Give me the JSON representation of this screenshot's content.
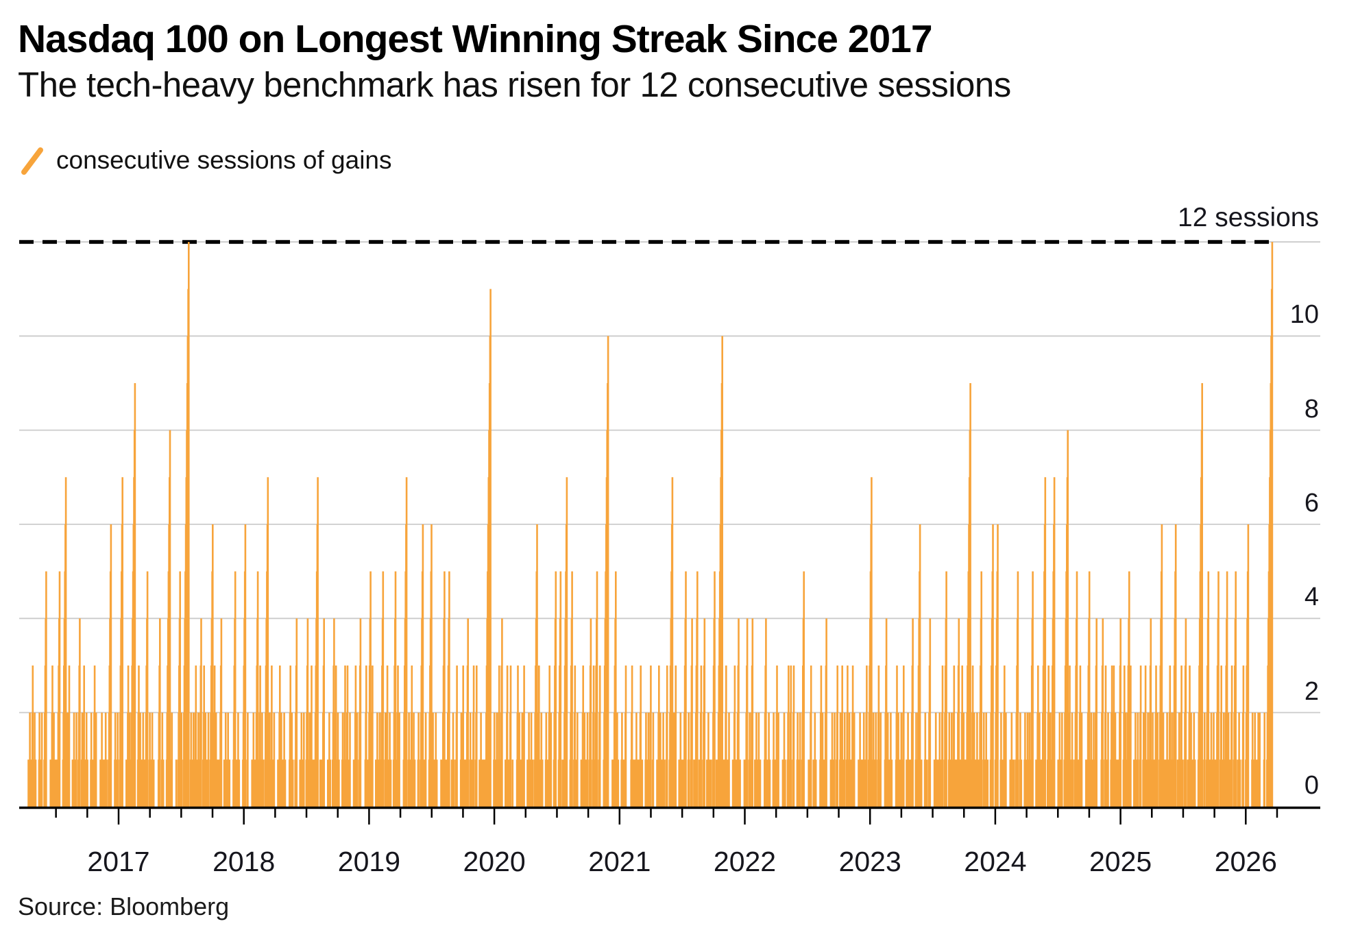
{
  "header": {
    "title": "Nasdaq 100 on Longest Winning Streak Since 2017",
    "subtitle": "The tech-heavy benchmark has risen for 12 consecutive sessions"
  },
  "legend": {
    "label": "consecutive sessions of gains"
  },
  "source": {
    "label": "Source: Bloomberg"
  },
  "chart_data": {
    "type": "bar",
    "title": "Nasdaq 100 on Longest Winning Streak Since 2017",
    "ylabel": "consecutive sessions of gains",
    "unit": "sessions",
    "annotation": {
      "text": "12 sessions",
      "value": 12
    },
    "y_ticks": [
      0,
      2,
      4,
      6,
      8,
      10
    ],
    "threshold_line": 12,
    "ylim": [
      0,
      12
    ],
    "x_tick_years": [
      2017,
      2018,
      2019,
      2020,
      2021,
      2022,
      2023,
      2024,
      2025,
      2026
    ],
    "timeline": {
      "start": 2016.28,
      "end": 2026.23,
      "trading_days_per_year": 261
    },
    "grid": true,
    "legend_position": "top-left",
    "series": [
      {
        "name": "consecutive sessions of gains",
        "note": "peaks = [decimal_year, streak_length_sessions]; each streak ramps 1..n on consecutive trading days",
        "peaks": [
          [
            2016.42,
            5
          ],
          [
            2016.53,
            5
          ],
          [
            2016.58,
            7
          ],
          [
            2016.69,
            4
          ],
          [
            2016.94,
            6
          ],
          [
            2017.03,
            7
          ],
          [
            2017.13,
            9
          ],
          [
            2017.23,
            5
          ],
          [
            2017.33,
            4
          ],
          [
            2017.41,
            8
          ],
          [
            2017.49,
            5
          ],
          [
            2017.56,
            12
          ],
          [
            2017.66,
            4
          ],
          [
            2017.75,
            6
          ],
          [
            2017.82,
            4
          ],
          [
            2017.93,
            5
          ],
          [
            2018.01,
            6
          ],
          [
            2018.11,
            5
          ],
          [
            2018.19,
            7
          ],
          [
            2018.42,
            4
          ],
          [
            2018.51,
            4
          ],
          [
            2018.59,
            7
          ],
          [
            2018.64,
            4
          ],
          [
            2018.72,
            4
          ],
          [
            2018.81,
            3
          ],
          [
            2018.93,
            4
          ],
          [
            2019.01,
            5
          ],
          [
            2019.11,
            5
          ],
          [
            2019.21,
            5
          ],
          [
            2019.3,
            7
          ],
          [
            2019.43,
            6
          ],
          [
            2019.5,
            6
          ],
          [
            2019.6,
            5
          ],
          [
            2019.64,
            5
          ],
          [
            2019.7,
            3
          ],
          [
            2019.79,
            4
          ],
          [
            2019.86,
            3
          ],
          [
            2019.97,
            11
          ],
          [
            2020.06,
            4
          ],
          [
            2020.13,
            3
          ],
          [
            2020.34,
            6
          ],
          [
            2020.49,
            5
          ],
          [
            2020.53,
            5
          ],
          [
            2020.58,
            7
          ],
          [
            2020.62,
            5
          ],
          [
            2020.77,
            4
          ],
          [
            2020.82,
            5
          ],
          [
            2020.91,
            10
          ],
          [
            2020.97,
            5
          ],
          [
            2021.05,
            3
          ],
          [
            2021.1,
            3
          ],
          [
            2021.17,
            3
          ],
          [
            2021.25,
            3
          ],
          [
            2021.38,
            3
          ],
          [
            2021.42,
            7
          ],
          [
            2021.53,
            5
          ],
          [
            2021.58,
            4
          ],
          [
            2021.62,
            5
          ],
          [
            2021.68,
            4
          ],
          [
            2021.76,
            5
          ],
          [
            2021.82,
            10
          ],
          [
            2021.85,
            3
          ],
          [
            2021.95,
            4
          ],
          [
            2022.02,
            4
          ],
          [
            2022.06,
            4
          ],
          [
            2022.17,
            4
          ],
          [
            2022.35,
            3
          ],
          [
            2022.39,
            3
          ],
          [
            2022.47,
            5
          ],
          [
            2022.53,
            3
          ],
          [
            2022.65,
            4
          ],
          [
            2022.74,
            3
          ],
          [
            2022.82,
            3
          ],
          [
            2023.01,
            7
          ],
          [
            2023.07,
            3
          ],
          [
            2023.13,
            4
          ],
          [
            2023.27,
            3
          ],
          [
            2023.34,
            4
          ],
          [
            2023.4,
            6
          ],
          [
            2023.48,
            4
          ],
          [
            2023.61,
            5
          ],
          [
            2023.71,
            4
          ],
          [
            2023.8,
            9
          ],
          [
            2023.89,
            5
          ],
          [
            2023.98,
            6
          ],
          [
            2024.02,
            6
          ],
          [
            2024.18,
            5
          ],
          [
            2024.3,
            5
          ],
          [
            2024.4,
            7
          ],
          [
            2024.47,
            7
          ],
          [
            2024.58,
            8
          ],
          [
            2024.65,
            5
          ],
          [
            2024.75,
            5
          ],
          [
            2024.81,
            4
          ],
          [
            2024.86,
            4
          ],
          [
            2024.93,
            3
          ],
          [
            2025.0,
            4
          ],
          [
            2025.07,
            5
          ],
          [
            2025.16,
            3
          ],
          [
            2025.24,
            4
          ],
          [
            2025.33,
            6
          ],
          [
            2025.44,
            6
          ],
          [
            2025.52,
            4
          ],
          [
            2025.65,
            9
          ],
          [
            2025.7,
            5
          ],
          [
            2025.78,
            5
          ],
          [
            2025.85,
            5
          ],
          [
            2025.92,
            5
          ],
          [
            2025.98,
            3
          ],
          [
            2026.02,
            6
          ],
          [
            2026.1,
            2
          ],
          [
            2026.15,
            2
          ],
          [
            2026.21,
            12
          ]
        ]
      }
    ],
    "base_pattern": [
      [
        1,
        1
      ],
      [
        2,
        1
      ],
      [
        1,
        1
      ],
      [
        3,
        2
      ],
      [
        2,
        1
      ],
      [
        1,
        6
      ],
      [
        2,
        1
      ],
      [
        1,
        1
      ],
      [
        2,
        2
      ],
      [
        3,
        1
      ],
      [
        1,
        1
      ],
      [
        2,
        7
      ],
      [
        1,
        1
      ],
      [
        3,
        1
      ],
      [
        2,
        2
      ],
      [
        1,
        1
      ],
      [
        2,
        1
      ],
      [
        1,
        8
      ],
      [
        3,
        1
      ],
      [
        2,
        1
      ],
      [
        1,
        2
      ],
      [
        2,
        1
      ],
      [
        3,
        6
      ],
      [
        1,
        1
      ],
      [
        2,
        1
      ],
      [
        1,
        1
      ],
      [
        2,
        2
      ],
      [
        1,
        7
      ],
      [
        2,
        1
      ],
      [
        3,
        1
      ],
      [
        1,
        1
      ],
      [
        2,
        1
      ],
      [
        1,
        6
      ],
      [
        2,
        2
      ],
      [
        1,
        1
      ],
      [
        3,
        1
      ],
      [
        2,
        8
      ],
      [
        1,
        1
      ],
      [
        2,
        1
      ],
      [
        1,
        2
      ]
    ],
    "colors": {
      "bar": "#F7A43B",
      "grid": "#CBCBCB",
      "threshold": "#000000",
      "axis": "#000000",
      "text": "#16161d"
    }
  }
}
